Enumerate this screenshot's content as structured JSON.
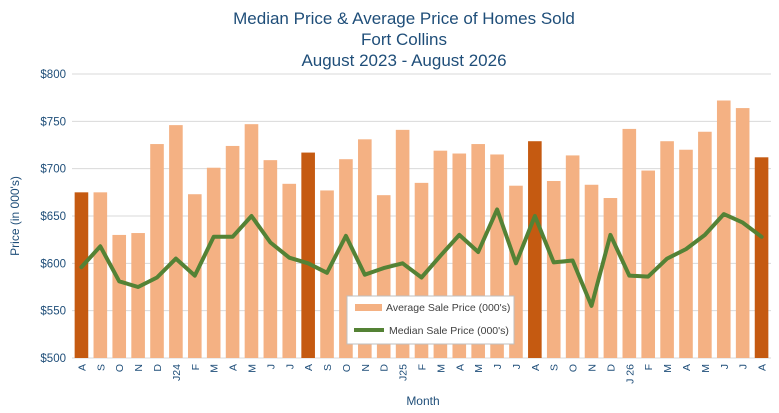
{
  "chart_data": {
    "type": "bar",
    "title": [
      "Median Price & Average Price of Homes Sold",
      "Fort Collins",
      "August 2023 - August 2026"
    ],
    "xlabel": "Month",
    "ylabel": "Price (in 000's)",
    "ylim": [
      500,
      800
    ],
    "yticks": [
      "$500",
      "$550",
      "$600",
      "$650",
      "$700",
      "$750",
      "$800"
    ],
    "grid": true,
    "legend_position": "bottom-center",
    "categories": [
      "A",
      "S",
      "O",
      "N",
      "D",
      "J24",
      "F",
      "M",
      "A",
      "M",
      "J",
      "J",
      "A",
      "S",
      "O",
      "N",
      "D",
      "J25",
      "F",
      "M",
      "A",
      "M",
      "J",
      "J",
      "A",
      "S",
      "O",
      "N",
      "D",
      "J 26",
      "F",
      "M",
      "A",
      "M",
      "J",
      "J",
      "A"
    ],
    "series": [
      {
        "name": "Average Sale Price (000's)",
        "type": "bar",
        "color": "#f4b183",
        "highlight_color": "#c55a11",
        "highlight_indices": [
          0,
          12,
          24,
          36
        ],
        "values": [
          675,
          675,
          630,
          632,
          726,
          746,
          673,
          701,
          724,
          747,
          709,
          684,
          717,
          677,
          710,
          731,
          672,
          741,
          685,
          719,
          716,
          726,
          715,
          682,
          729,
          687,
          714,
          683,
          669,
          742,
          698,
          729,
          720,
          739,
          772,
          764,
          712
        ]
      },
      {
        "name": "Median Sale Price (000's)",
        "type": "line",
        "color": "#548235",
        "values": [
          596,
          618,
          581,
          575,
          585,
          605,
          587,
          628,
          628,
          650,
          622,
          606,
          600,
          590,
          629,
          588,
          595,
          600,
          585,
          608,
          630,
          612,
          657,
          600,
          650,
          601,
          603,
          555,
          630,
          587,
          586,
          605,
          615,
          630,
          652,
          643,
          628
        ]
      }
    ]
  }
}
